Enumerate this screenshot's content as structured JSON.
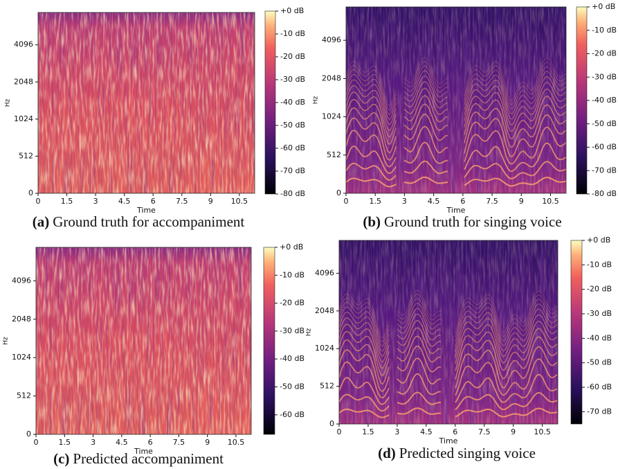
{
  "chart_data": [
    {
      "type": "spectrogram",
      "caption_label": "(a)",
      "caption": "Ground truth for accompaniment",
      "xlabel": "Time",
      "ylabel": "Hz",
      "xlim": [
        0,
        11.3
      ],
      "xticks": [
        0,
        1.5,
        3,
        4.5,
        6,
        7.5,
        9,
        10.5
      ],
      "yscale": "mel",
      "ylim": [
        0,
        7500
      ],
      "yticks": [
        0,
        512,
        1024,
        2048,
        4096
      ],
      "cmap": "magma",
      "clim": [
        -80,
        0
      ],
      "colorbar_ticks": [
        {
          "value": 0,
          "label": "+0 dB"
        },
        {
          "value": -10,
          "label": "-10 dB"
        },
        {
          "value": -20,
          "label": "-20 dB"
        },
        {
          "value": -30,
          "label": "-30 dB"
        },
        {
          "value": -40,
          "label": "-40 dB"
        },
        {
          "value": -50,
          "label": "-50 dB"
        },
        {
          "value": -60,
          "label": "-60 dB"
        },
        {
          "value": -70,
          "label": "-70 dB"
        },
        {
          "value": -80,
          "label": "-80 dB"
        }
      ]
    },
    {
      "type": "spectrogram",
      "caption_label": "(b)",
      "caption": "Ground truth for singing voice",
      "xlabel": "Time",
      "ylabel": "Hz",
      "xlim": [
        0,
        11.3
      ],
      "xticks": [
        0,
        1.5,
        3,
        4.5,
        6,
        7.5,
        9,
        10.5
      ],
      "yscale": "mel",
      "ylim": [
        0,
        7500
      ],
      "yticks": [
        0,
        512,
        1024,
        2048,
        4096
      ],
      "cmap": "magma",
      "clim": [
        -80,
        0
      ],
      "colorbar_ticks": [
        {
          "value": 0,
          "label": "+0 dB"
        },
        {
          "value": -10,
          "label": "-10 dB"
        },
        {
          "value": -20,
          "label": "-20 dB"
        },
        {
          "value": -30,
          "label": "-30 dB"
        },
        {
          "value": -40,
          "label": "-40 dB"
        },
        {
          "value": -50,
          "label": "-50 dB"
        },
        {
          "value": -60,
          "label": "-60 dB"
        },
        {
          "value": -70,
          "label": "-70 dB"
        },
        {
          "value": -80,
          "label": "-80 dB"
        }
      ]
    },
    {
      "type": "spectrogram",
      "caption_label": "(c)",
      "caption": "Predicted accompaniment",
      "xlabel": "Time",
      "ylabel": "Hz",
      "xlim": [
        0,
        11.3
      ],
      "xticks": [
        0,
        1.5,
        3,
        4.5,
        6,
        7.5,
        9,
        10.5
      ],
      "yscale": "mel",
      "ylim": [
        0,
        7500
      ],
      "yticks": [
        0,
        512,
        1024,
        2048,
        4096
      ],
      "cmap": "magma",
      "clim": [
        -67,
        0
      ],
      "colorbar_ticks": [
        {
          "value": 0,
          "label": "+0 dB"
        },
        {
          "value": -10,
          "label": "-10 dB"
        },
        {
          "value": -20,
          "label": "-20 dB"
        },
        {
          "value": -30,
          "label": "-30 dB"
        },
        {
          "value": -40,
          "label": "-40 dB"
        },
        {
          "value": -50,
          "label": "-50 dB"
        },
        {
          "value": -60,
          "label": "-60 dB"
        }
      ]
    },
    {
      "type": "spectrogram",
      "caption_label": "(d)",
      "caption": "Predicted singing voice",
      "xlabel": "Time",
      "ylabel": "Hz",
      "xlim": [
        0,
        11.3
      ],
      "xticks": [
        0,
        1.5,
        3,
        4.5,
        6,
        7.5,
        9,
        10.5
      ],
      "yscale": "mel",
      "ylim": [
        0,
        7500
      ],
      "yticks": [
        0,
        512,
        1024,
        2048,
        4096
      ],
      "cmap": "magma",
      "clim": [
        -75,
        0
      ],
      "colorbar_ticks": [
        {
          "value": 0,
          "label": "+0 dB"
        },
        {
          "value": -10,
          "label": "-10 dB"
        },
        {
          "value": -20,
          "label": "-20 dB"
        },
        {
          "value": -30,
          "label": "-30 dB"
        },
        {
          "value": -40,
          "label": "-40 dB"
        },
        {
          "value": -50,
          "label": "-50 dB"
        },
        {
          "value": -60,
          "label": "-60 dB"
        },
        {
          "value": -70,
          "label": "-70 dB"
        }
      ]
    }
  ]
}
